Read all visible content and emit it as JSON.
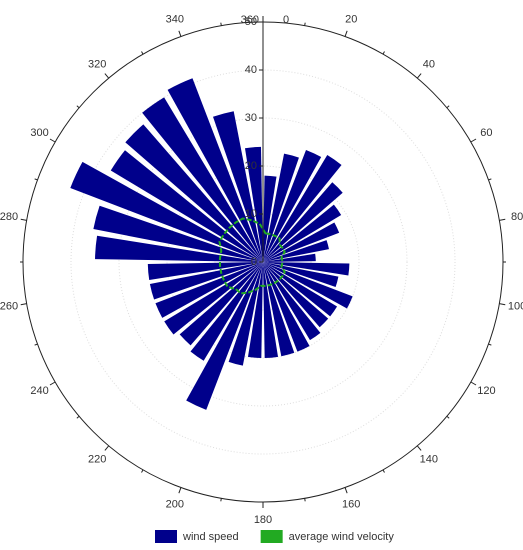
{
  "chart_data": {
    "type": "polar_bar",
    "theta": [
      5,
      15,
      25,
      35,
      45,
      55,
      65,
      75,
      85,
      95,
      105,
      115,
      125,
      135,
      145,
      155,
      165,
      175,
      185,
      195,
      205,
      215,
      225,
      235,
      245,
      255,
      265,
      275,
      285,
      295,
      305,
      315,
      325,
      335,
      345,
      355
    ],
    "series": [
      {
        "name": "wind speed",
        "color": "#00008b",
        "type": "bar",
        "values": [
          18,
          23,
          25,
          26,
          22,
          19,
          17,
          14,
          11,
          18,
          16,
          20,
          18,
          18,
          19,
          20,
          20,
          20,
          20,
          22,
          33,
          24,
          23,
          24,
          24,
          24,
          24,
          35,
          36,
          43,
          37,
          38,
          40,
          41,
          32,
          24
        ]
      },
      {
        "name": "average wind velocity",
        "color": "#22aa22",
        "type": "line",
        "values": [
          6,
          6,
          6,
          6,
          5,
          5,
          5,
          4,
          4,
          4,
          4,
          5,
          5,
          5,
          5,
          5,
          5,
          5,
          5,
          6,
          7,
          8,
          8,
          9,
          9,
          9,
          9,
          9,
          9,
          10,
          10,
          10,
          10,
          10,
          9,
          8
        ]
      }
    ],
    "rlim": [
      0,
      50
    ],
    "rticks": [
      0,
      10,
      20,
      30,
      40,
      50
    ],
    "thetaticks": [
      0,
      20,
      40,
      60,
      80,
      100,
      120,
      140,
      160,
      180,
      200,
      220,
      240,
      260,
      280,
      300,
      320,
      340,
      360
    ],
    "grid": true
  }
}
